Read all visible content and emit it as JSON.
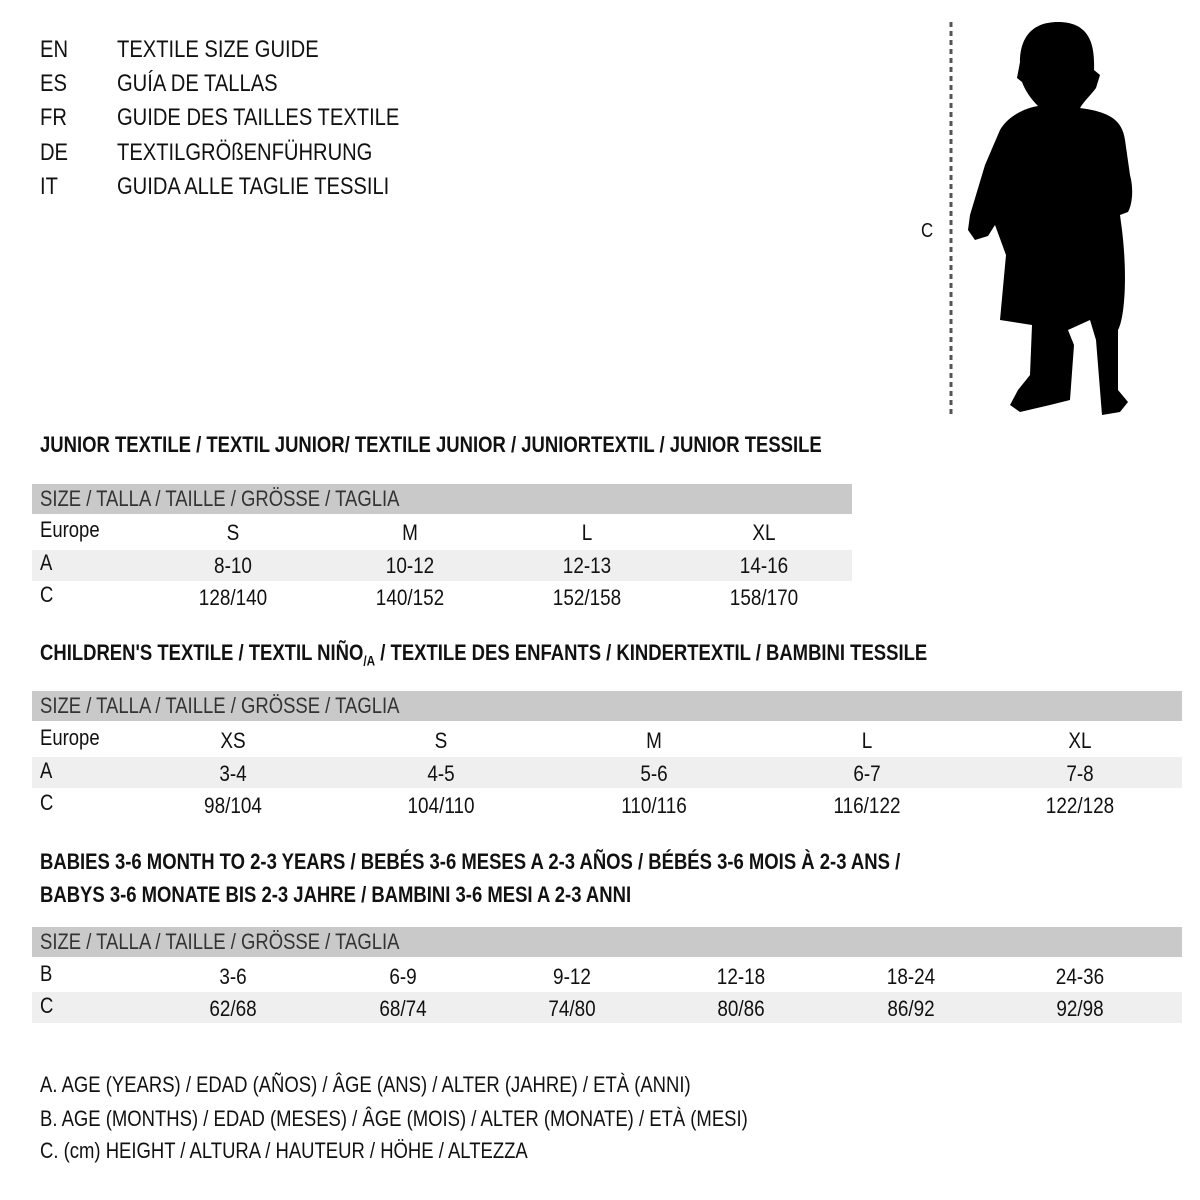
{
  "languages": [
    {
      "code": "EN",
      "text": "TEXTILE SIZE GUIDE"
    },
    {
      "code": "ES",
      "text": "GUÍA DE TALLAS"
    },
    {
      "code": "FR",
      "text": "GUIDE DES TAILLES TEXTILE"
    },
    {
      "code": "DE",
      "text": "TEXTILGRÖßENFÜHRUNG"
    },
    {
      "code": "IT",
      "text": "GUIDA ALLE TAGLIE TESSILI"
    }
  ],
  "figure": {
    "measure_label": "C"
  },
  "size_header": "SIZE / TALLA / TAILLE / GRÖSSE / TAGLIA",
  "junior": {
    "title": "JUNIOR TEXTILE / TEXTIL JUNIOR/ TEXTILE JUNIOR / JUNIORTEXTIL / JUNIOR TESSILE",
    "rows": [
      {
        "label": "Europe",
        "values": [
          "S",
          "M",
          "L",
          "XL"
        ]
      },
      {
        "label": "A",
        "values": [
          "8-10",
          "10-12",
          "12-13",
          "14-16"
        ]
      },
      {
        "label": "C",
        "values": [
          "128/140",
          "140/152",
          "152/158",
          "158/170"
        ]
      }
    ]
  },
  "children": {
    "title": "CHILDREN'S TEXTILE / TEXTIL NIÑO",
    "title_sub": "/A",
    "title_rest": " / TEXTILE DES ENFANTS / KINDERTEXTIL / BAMBINI TESSILE",
    "rows": [
      {
        "label": "Europe",
        "values": [
          "XS",
          "S",
          "M",
          "L",
          "XL"
        ]
      },
      {
        "label": "A",
        "values": [
          "3-4",
          "4-5",
          "5-6",
          "6-7",
          "7-8"
        ]
      },
      {
        "label": "C",
        "values": [
          "98/104",
          "104/110",
          "110/116",
          "116/122",
          "122/128"
        ]
      }
    ]
  },
  "babies": {
    "title_line1": "BABIES 3-6 MONTH TO 2-3 YEARS / BEBÉS 3-6 MESES A 2-3 AÑOS / BÉBÉS 3-6 MOIS À 2-3 ANS /",
    "title_line2": "BABYS 3-6 MONATE BIS 2-3 JAHRE / BAMBINI 3-6 MESI A 2-3 ANNI",
    "rows": [
      {
        "label": "B",
        "values": [
          "3-6",
          "6-9",
          "9-12",
          "12-18",
          "18-24",
          "24-36"
        ]
      },
      {
        "label": "C",
        "values": [
          "62/68",
          "68/74",
          "74/80",
          "80/86",
          "86/92",
          "92/98"
        ]
      }
    ]
  },
  "legend": [
    "A. AGE (YEARS) / EDAD (AÑOS) / ÂGE (ANS) / ALTER (JAHRE) / ETÀ (ANNI)",
    "B. AGE (MONTHS) / EDAD (MESES) / ÂGE (MOIS) / ALTER (MONATE) / ETÀ (MESI)",
    "C. (cm) HEIGHT / ALTURA / HAUTEUR / HÖHE / ALTEZZA"
  ],
  "colors": {
    "header_bar": "#c9c9c9",
    "alt_row": "#efefef",
    "text": "#111111"
  }
}
